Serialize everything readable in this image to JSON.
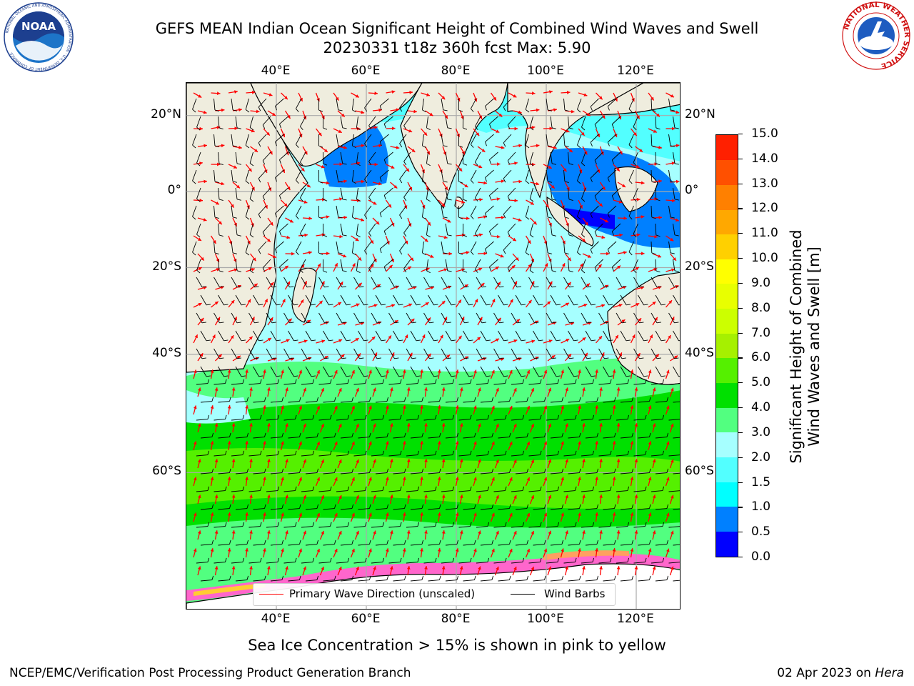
{
  "header": {
    "title_line1": "GEFS MEAN Indian Ocean Significant Height of Combined Wind Waves and Swell",
    "title_line2": "20230331 t18z 360h fcst   Max: 5.90"
  },
  "logos": {
    "noaa": {
      "icon": "noaa-logo-icon",
      "text": "NOAA",
      "ring_text": "NATIONAL OCEANIC AND ATMOSPHERIC ADMINISTRATION · U.S. DEPARTMENT OF COMMERCE"
    },
    "nws": {
      "icon": "nws-logo-icon",
      "ring_text": "NATIONAL WEATHER SERVICE"
    }
  },
  "map": {
    "lon_range": [
      20,
      130
    ],
    "lat_range": [
      -74,
      28
    ],
    "top_lon_labels": [
      "40°E",
      "60°E",
      "80°E",
      "100°E",
      "120°E"
    ],
    "bottom_lon_labels": [
      "40°E",
      "60°E",
      "80°E",
      "100°E",
      "120°E"
    ],
    "left_lat_labels": [
      "20°N",
      "0°",
      "20°S",
      "40°S",
      "60°S"
    ],
    "right_lat_labels": [
      "20°N",
      "0°",
      "20°S",
      "40°S",
      "60°S"
    ],
    "land_color": "#efedde",
    "ocean_base_color": "#a6ffff"
  },
  "legend": {
    "wave_label": "Primary Wave Direction (unscaled)",
    "wave_color": "#ff0000",
    "barb_label": "Wind Barbs",
    "barb_color": "#000000"
  },
  "colorbar": {
    "title_line1": "Significant Height of Combined",
    "title_line2": "Wind Waves and Swell [m]",
    "tick_labels": [
      "0.0",
      "0.5",
      "1.0",
      "1.5",
      "2.0",
      "3.0",
      "4.0",
      "5.0",
      "6.0",
      "7.0",
      "8.0",
      "9.0",
      "10.0",
      "11.0",
      "12.0",
      "13.0",
      "14.0",
      "15.0"
    ],
    "colors": [
      "#0000ff",
      "#0080ff",
      "#00ffff",
      "#52ffff",
      "#a6ffff",
      "#52ff80",
      "#00e000",
      "#55f000",
      "#a6f000",
      "#ccff00",
      "#e8ff00",
      "#ffff00",
      "#ffd000",
      "#ffa800",
      "#ff8000",
      "#ff5000",
      "#ff2000",
      "#ff0000"
    ]
  },
  "notes": {
    "sea_ice": "Sea Ice Concentration > 15% is shown in pink to yellow"
  },
  "footer": {
    "left": "NCEP/EMC/Verification Post Processing Product Generation Branch",
    "right_prefix": "02 Apr 2023 on ",
    "right_host": "Hera"
  }
}
